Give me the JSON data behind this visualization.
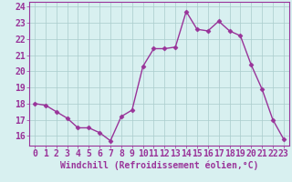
{
  "x": [
    0,
    1,
    2,
    3,
    4,
    5,
    6,
    7,
    8,
    9,
    10,
    11,
    12,
    13,
    14,
    15,
    16,
    17,
    18,
    19,
    20,
    21,
    22,
    23
  ],
  "y": [
    18.0,
    17.9,
    17.5,
    17.1,
    16.5,
    16.5,
    16.2,
    15.7,
    17.2,
    17.6,
    20.3,
    21.4,
    21.4,
    21.5,
    23.7,
    22.6,
    22.5,
    23.1,
    22.5,
    22.2,
    20.4,
    18.9,
    17.0,
    15.8
  ],
  "line_color": "#993399",
  "marker": "D",
  "marker_size": 2.5,
  "bg_color": "#d8f0f0",
  "grid_color": "#aacccc",
  "xlabel": "Windchill (Refroidissement éolien,°C)",
  "ylabel_ticks": [
    16,
    17,
    18,
    19,
    20,
    21,
    22,
    23,
    24
  ],
  "ylim": [
    15.4,
    24.3
  ],
  "xlim": [
    -0.5,
    23.5
  ],
  "tick_color": "#993399",
  "font_size_label": 7.0,
  "font_size_tick": 7.0,
  "linewidth": 1.0
}
